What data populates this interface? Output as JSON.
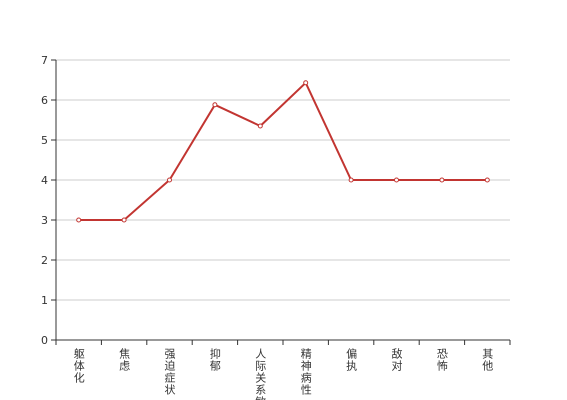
{
  "chart_data": {
    "type": "line",
    "categories": [
      "躯体化",
      "焦虑",
      "强迫症状",
      "抑郁",
      "人际关系敏感",
      "精神病性",
      "偏执",
      "敌对",
      "恐怖",
      "其他"
    ],
    "series": [
      {
        "color": "#c23531",
        "values": [
          3,
          3,
          4,
          5.88,
          5.35,
          6.43,
          4,
          4,
          4,
          4
        ]
      }
    ],
    "ylim": [
      0,
      7
    ],
    "yticks": [
      0,
      1,
      2,
      3,
      4,
      5,
      6,
      7
    ],
    "grid": true
  }
}
